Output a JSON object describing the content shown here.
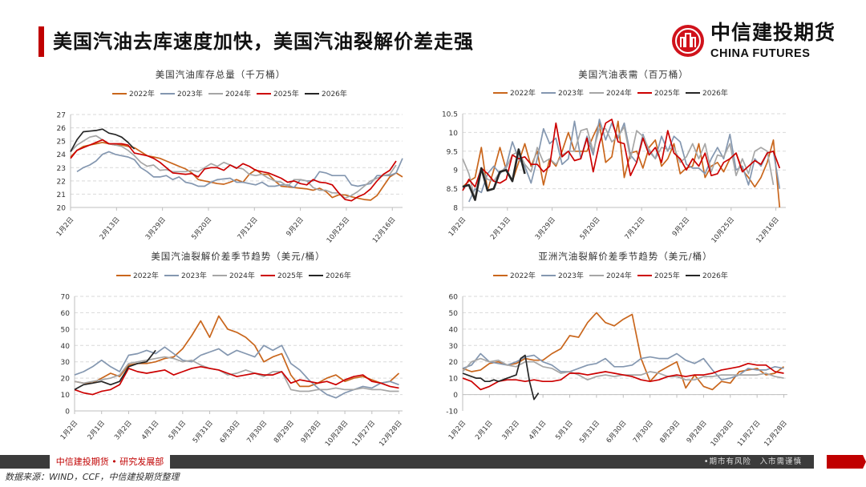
{
  "header": {
    "title": "美国汽油去库速度加快，美国汽油裂解价差走强"
  },
  "logo": {
    "cn": "中信建投期货",
    "en": "CHINA FUTURES"
  },
  "footer": {
    "left": "中信建投期货 • 研究发展部",
    "right": "•期市有风险　入市需谨慎",
    "source": "数据来源：WIND，CCF，中信建投期货整理"
  },
  "colors": {
    "2022年": "#C9661C",
    "2023年": "#8497B0",
    "2024年": "#A6A6A6",
    "2025年": "#CC0000",
    "2026年": "#262626"
  },
  "chart_data": [
    {
      "type": "line",
      "title": "美国汽油库存总量（千万桶）",
      "ylim": [
        20,
        27
      ],
      "yticks": [
        20,
        21,
        22,
        23,
        24,
        25,
        26,
        27
      ],
      "xlim": [
        0,
        52
      ],
      "xticks": {
        "labels": [
          "1月2日",
          "2月13日",
          "3月29日",
          "5月20日",
          "7月12日",
          "9月2日",
          "10月25日",
          "12月16日"
        ],
        "positions": [
          0,
          7.2,
          14.4,
          21.6,
          28.8,
          36,
          43.2,
          50.4
        ]
      },
      "grid": true,
      "legend": "top",
      "series": [
        {
          "name": "2022年",
          "start": 0,
          "step": 1,
          "values": [
            23.8,
            24.3,
            24.6,
            24.7,
            24.8,
            24.9,
            24.8,
            24.7,
            24.7,
            24.6,
            24.5,
            24.2,
            23.9,
            23.8,
            23.7,
            23.5,
            23.3,
            23.1,
            22.9,
            22.6,
            22.1,
            22.0,
            21.9,
            21.8,
            21.75,
            21.9,
            22.1,
            21.9,
            22.5,
            22.85,
            22.5,
            22.5,
            22.0,
            21.6,
            21.55,
            21.5,
            21.45,
            21.4,
            21.3,
            21.45,
            21.2,
            20.75,
            20.95,
            20.95,
            20.8,
            20.7,
            20.6,
            20.55,
            20.9,
            21.6,
            22.3,
            22.6,
            22.3
          ]
        },
        {
          "name": "2023年",
          "start": 1,
          "step": 1,
          "values": [
            22.7,
            23.0,
            23.2,
            23.5,
            24.0,
            24.2,
            24.0,
            23.9,
            23.8,
            23.6,
            23.0,
            22.7,
            22.3,
            22.3,
            22.4,
            22.1,
            22.3,
            21.9,
            21.8,
            21.6,
            21.6,
            21.9,
            22.1,
            22.15,
            22.2,
            21.9,
            21.9,
            21.8,
            21.7,
            21.9,
            21.6,
            21.6,
            21.7,
            21.7,
            21.5,
            22.1,
            22.0,
            22.0,
            22.7,
            22.6,
            22.4,
            22.4,
            22.4,
            21.7,
            21.6,
            21.7,
            21.8,
            22.4,
            22.4,
            22.4,
            22.6,
            23.7
          ]
        },
        {
          "name": "2024年",
          "start": 0,
          "step": 1,
          "values": [
            24.2,
            24.7,
            25.0,
            25.3,
            25.4,
            25.1,
            24.8,
            24.7,
            24.6,
            24.3,
            23.9,
            23.4,
            23.1,
            23.2,
            22.8,
            22.85,
            22.7,
            22.7,
            22.7,
            22.8,
            22.7,
            23.0,
            23.3,
            23.1,
            23.4,
            23.2,
            23.0,
            22.9,
            22.5,
            22.4,
            22.5,
            22.2,
            22.0,
            21.9,
            21.6,
            22.1,
            22.1,
            22.0,
            21.5,
            21.3,
            21.3,
            21.1,
            21.1,
            20.7,
            20.9,
            21.2,
            21.6,
            22.0,
            22.2,
            22.4,
            22.5,
            23.2
          ]
        },
        {
          "name": "2025年",
          "start": 0,
          "step": 1,
          "values": [
            23.7,
            24.3,
            24.5,
            24.7,
            24.9,
            25.1,
            24.8,
            24.8,
            24.8,
            24.7,
            24.1,
            24.0,
            23.9,
            23.7,
            23.4,
            23.0,
            22.6,
            22.55,
            22.5,
            22.55,
            22.3,
            22.9,
            23.0,
            23.0,
            22.8,
            23.2,
            22.95,
            23.3,
            23.1,
            22.8,
            22.7,
            22.6,
            22.4,
            22.2,
            21.9,
            22.0,
            21.8,
            21.7,
            22.1,
            21.9,
            21.85,
            21.7,
            21.1,
            20.6,
            20.5,
            20.8,
            21.0,
            21.4,
            22.0,
            22.5,
            22.8,
            23.5
          ]
        },
        {
          "name": "2026年",
          "start": 0,
          "step": 1,
          "values": [
            24.2,
            25.1,
            25.7,
            25.75,
            25.8,
            25.9,
            25.6,
            25.5,
            25.3,
            24.9,
            24.4
          ]
        }
      ]
    },
    {
      "type": "line",
      "title": "美国汽油表需（百万桶）",
      "ylim": [
        8,
        10.5
      ],
      "yticks": [
        8,
        8.5,
        9,
        9.5,
        10,
        10.5
      ],
      "xlim": [
        0,
        52
      ],
      "xticks": {
        "labels": [
          "1月2日",
          "2月13日",
          "3月29日",
          "5月20日",
          "7月12日",
          "9月2日",
          "10月25日",
          "12月16日"
        ],
        "positions": [
          0,
          7.2,
          14.4,
          21.6,
          28.8,
          36,
          43.2,
          50.4
        ]
      },
      "grid": true,
      "legend": "top",
      "series": [
        {
          "name": "2022年",
          "start": 0,
          "step": 1,
          "values": [
            8.55,
            8.7,
            8.8,
            9.6,
            8.45,
            9.0,
            9.6,
            9.0,
            8.7,
            9.2,
            9.7,
            9.1,
            9.5,
            8.6,
            9.3,
            9.1,
            9.5,
            10.0,
            9.5,
            9.5,
            9.5,
            9.9,
            10.25,
            9.2,
            9.35,
            10.3,
            8.8,
            9.45,
            9.5,
            9.05,
            9.6,
            9.8,
            9.1,
            9.3,
            9.7,
            8.9,
            9.05,
            9.1,
            9.7,
            8.8,
            9.1,
            9.2,
            8.95,
            9.3,
            9.45,
            9.0,
            8.8,
            8.55,
            8.8,
            9.2,
            9.8,
            8.0
          ]
        },
        {
          "name": "2023年",
          "start": 1,
          "step": 1,
          "values": [
            8.15,
            8.5,
            8.4,
            8.9,
            9.1,
            8.9,
            9.1,
            9.75,
            9.3,
            9.1,
            8.65,
            9.3,
            10.1,
            9.7,
            9.85,
            9.15,
            9.3,
            10.3,
            9.3,
            9.9,
            9.4,
            10.35,
            9.8,
            10.25,
            9.85,
            10.25,
            9.4,
            9.2,
            9.95,
            9.5,
            9.3,
            9.9,
            9.5,
            9.9,
            9.75,
            9.15,
            9.05,
            9.05,
            8.9,
            9.3,
            9.6,
            9.3,
            9.95,
            9.0,
            9.1,
            8.6,
            9.3,
            9.1,
            9.45,
            9.5,
            8.5
          ]
        },
        {
          "name": "2024年",
          "start": 0,
          "step": 1,
          "values": [
            9.3,
            8.9,
            8.2,
            9.0,
            8.75,
            8.7,
            8.95,
            9.05,
            9.4,
            9.5,
            9.15,
            8.95,
            9.6,
            9.2,
            9.3,
            9.15,
            9.4,
            9.5,
            9.5,
            10.05,
            10.1,
            9.5,
            10.1,
            10.1,
            9.75,
            9.9,
            10.15,
            9.3,
            10.05,
            9.9,
            9.55,
            9.3,
            9.6,
            9.55,
            9.6,
            9.2,
            9.35,
            9.7,
            9.3,
            9.7,
            8.95,
            9.4,
            9.35,
            9.7,
            8.85,
            9.3,
            8.9,
            9.5,
            9.6,
            9.5,
            8.6
          ]
        },
        {
          "name": "2025年",
          "start": 0,
          "step": 1,
          "values": [
            8.45,
            8.75,
            8.55,
            9.05,
            8.9,
            8.7,
            8.65,
            8.75,
            9.4,
            9.3,
            9.35,
            9.15,
            9.15,
            8.95,
            9.1,
            10.25,
            9.35,
            9.5,
            9.25,
            9.3,
            9.85,
            8.95,
            9.7,
            10.25,
            10.35,
            9.75,
            9.7,
            8.85,
            9.2,
            9.85,
            9.4,
            9.6,
            9.2,
            10.05,
            9.45,
            9.3,
            9.0,
            9.3,
            9.1,
            9.45,
            8.85,
            8.9,
            9.2,
            9.3,
            9.45,
            8.95,
            9.1,
            9.25,
            9.15,
            9.45,
            9.5,
            9.05
          ]
        },
        {
          "name": "2026年",
          "start": 0,
          "step": 1,
          "values": [
            8.55,
            8.6,
            8.2,
            9.05,
            8.45,
            8.5,
            8.95,
            9.0,
            8.7,
            9.55,
            8.9
          ]
        }
      ]
    },
    {
      "type": "line",
      "title": "美国汽油裂解价差季节趋势（美元/桶）",
      "ylim": [
        0,
        70
      ],
      "yticks": [
        0,
        10,
        20,
        30,
        40,
        50,
        60,
        70
      ],
      "xlim": [
        0,
        364
      ],
      "xticks": {
        "labels": [
          "1月2日",
          "2月1日",
          "3月2日",
          "4月1日",
          "5月1日",
          "5月31日",
          "6月30日",
          "7月30日",
          "8月29日",
          "9月28日",
          "10月28日",
          "11月27日",
          "12月28日"
        ],
        "positions": [
          0,
          30,
          60,
          90,
          120,
          150,
          180,
          210,
          240,
          270,
          300,
          330,
          360
        ]
      },
      "grid": true,
      "legend": "top",
      "series": [
        {
          "name": "2022年",
          "start": 0,
          "step": 10,
          "values": [
            18,
            17,
            17,
            20,
            23,
            21,
            28,
            29,
            29,
            30,
            32,
            33,
            38,
            46,
            55,
            45,
            58,
            50,
            48,
            45,
            40,
            30,
            33,
            35,
            22,
            15,
            15,
            17,
            20,
            22,
            18,
            20,
            21,
            19,
            17,
            18,
            23
          ]
        },
        {
          "name": "2023年",
          "start": 0,
          "step": 10,
          "values": [
            22,
            24,
            27,
            31,
            27,
            24,
            34,
            35,
            37,
            35,
            39,
            35,
            31,
            30,
            34,
            36,
            38,
            34,
            37,
            35,
            33,
            40,
            37,
            40,
            29,
            25,
            19,
            14,
            10,
            8,
            11,
            13,
            15,
            14,
            17,
            18,
            16
          ]
        },
        {
          "name": "2024年",
          "start": 0,
          "step": 10,
          "values": [
            18,
            17,
            18,
            19,
            20,
            22,
            29,
            30,
            31,
            32,
            33,
            32,
            30,
            31,
            28,
            26,
            25,
            22,
            23,
            25,
            23,
            21,
            24,
            24,
            13,
            12,
            12,
            13,
            13,
            14,
            13,
            13,
            14,
            13,
            13,
            12,
            12
          ]
        },
        {
          "name": "2025年",
          "start": 0,
          "step": 10,
          "values": [
            13,
            11,
            10,
            12,
            13,
            16,
            26,
            24,
            23,
            24,
            25,
            22,
            24,
            26,
            27,
            26,
            25,
            23,
            21,
            22,
            23,
            22,
            22,
            24,
            17,
            19,
            18,
            17,
            18,
            16,
            19,
            21,
            22,
            18,
            17,
            15,
            14
          ]
        },
        {
          "name": "2026年",
          "start": 0,
          "step": 10,
          "values": [
            13,
            16,
            17,
            18,
            16,
            18,
            27,
            29,
            30,
            37
          ]
        }
      ]
    },
    {
      "type": "line",
      "title": "亚洲汽油裂解价差季节趋势（美元/桶）",
      "ylim": [
        -10,
        60
      ],
      "yticks": [
        -10,
        0,
        10,
        20,
        30,
        40,
        50,
        60
      ],
      "xlim": [
        0,
        364
      ],
      "xticks": {
        "labels": [
          "1月2日",
          "2月1日",
          "3月2日",
          "4月1日",
          "5月1日",
          "5月31日",
          "6月30日",
          "7月30日",
          "8月29日",
          "9月28日",
          "10月28日",
          "11月27日",
          "12月28日"
        ],
        "positions": [
          0,
          30,
          60,
          90,
          120,
          150,
          180,
          210,
          240,
          270,
          300,
          330,
          360
        ]
      },
      "grid": true,
      "legend": "top",
      "series": [
        {
          "name": "2022年",
          "start": 0,
          "step": 10,
          "values": [
            16,
            14,
            15,
            19,
            20,
            18,
            19,
            22,
            21,
            21,
            25,
            28,
            36,
            35,
            44,
            50,
            44,
            42,
            46,
            49,
            22,
            8,
            14,
            17,
            20,
            4,
            12,
            5,
            3,
            8,
            7,
            14,
            15,
            16,
            12,
            13,
            17
          ]
        },
        {
          "name": "2023年",
          "start": 0,
          "step": 10,
          "values": [
            16,
            18,
            25,
            20,
            19,
            18,
            20,
            23,
            24,
            20,
            18,
            14,
            14,
            16,
            18,
            19,
            22,
            17,
            17,
            18,
            22,
            23,
            22,
            22,
            25,
            21,
            19,
            22,
            15,
            9,
            10,
            12,
            16,
            15,
            15,
            17,
            16
          ]
        },
        {
          "name": "2024年",
          "start": 0,
          "step": 10,
          "values": [
            14,
            20,
            22,
            20,
            21,
            18,
            17,
            20,
            20,
            17,
            16,
            13,
            14,
            12,
            9,
            11,
            12,
            11,
            12,
            12,
            12,
            14,
            13,
            11,
            11,
            9,
            9,
            11,
            11,
            12,
            12,
            12,
            12,
            12,
            13,
            11,
            10
          ]
        },
        {
          "name": "2025年",
          "start": 0,
          "step": 10,
          "values": [
            10,
            8,
            3,
            5,
            8,
            9,
            9,
            8,
            9,
            8,
            8,
            9,
            13,
            13,
            12,
            13,
            14,
            13,
            12,
            11,
            9,
            8,
            9,
            11,
            12,
            11,
            12,
            12,
            13,
            15,
            16,
            17,
            19,
            18,
            18,
            14,
            13
          ]
        },
        {
          "name": "2026年",
          "start": 0,
          "step": 5,
          "values": [
            13,
            12,
            11,
            10,
            10,
            8,
            8,
            9,
            8,
            9,
            10,
            11,
            12,
            22,
            24,
            8,
            -3,
            1
          ]
        }
      ]
    }
  ]
}
